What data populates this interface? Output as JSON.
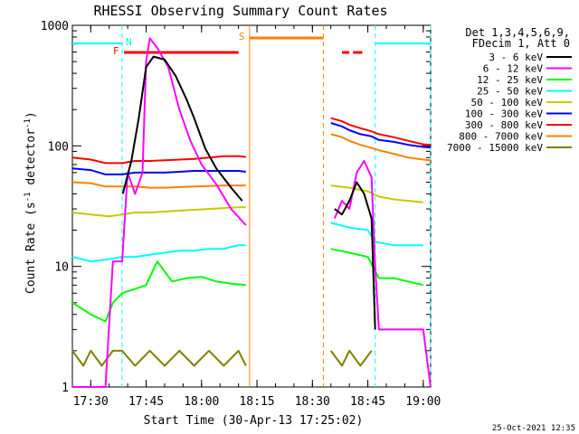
{
  "chart_data": {
    "type": "line",
    "title": "RHESSI Observing Summary Count Rates",
    "xlabel": "Start Time (30-Apr-13 17:25:02)",
    "ylabel": "Count Rate (s",
    "ylabel_sup1": "-1",
    "ylabel_mid": " detector",
    "ylabel_sup2": "-1",
    "ylabel_end": ")",
    "y_scale": "log",
    "ylim": [
      1,
      1000
    ],
    "xlim": [
      "17:25:02",
      "19:02:00"
    ],
    "x_ticks": [
      "17:30",
      "17:45",
      "18:00",
      "18:15",
      "18:30",
      "18:45",
      "19:00"
    ],
    "y_ticks": [
      "1",
      "10",
      "100",
      "1000"
    ],
    "timestamp": "25-Oct-2021 12:35",
    "legend_header": [
      "Det 1,3,4,5,6,9,",
      "FDecim 1, Att 0"
    ],
    "flags": {
      "N_label": "N",
      "F_label": "F",
      "S_label": "S",
      "N_intervals": [
        [
          "17:25:02",
          "17:38:30"
        ],
        [
          "18:47:00",
          "19:02:00"
        ]
      ],
      "N_lines": [
        "17:38:30",
        "18:47:00",
        "19:02:00"
      ],
      "F_intervals": [
        [
          "17:39:00",
          "18:10:00"
        ],
        [
          "18:38:00",
          "18:40:00"
        ],
        [
          "18:41:00",
          "18:43:30"
        ]
      ],
      "S_interval": [
        "18:13:00",
        "18:33:00"
      ],
      "N_color": "#00ffff",
      "F_color": "#ff0000",
      "S_color": "#ff8000"
    },
    "series": [
      {
        "name": "3 - 6 keV",
        "color": "#000000",
        "points": [
          [
            "17:38:40",
            40
          ],
          [
            "17:41",
            75
          ],
          [
            "17:43",
            170
          ],
          [
            "17:45",
            450
          ],
          [
            "17:47",
            550
          ],
          [
            "17:50",
            520
          ],
          [
            "17:53",
            380
          ],
          [
            "17:56",
            240
          ],
          [
            "17:58",
            170
          ],
          [
            "18:01",
            95
          ],
          [
            "18:04",
            65
          ],
          [
            "18:08",
            45
          ],
          [
            "18:11",
            35
          ],
          [
            "SEP",
            0
          ],
          [
            "18:36",
            30
          ],
          [
            "18:38",
            27
          ],
          [
            "18:40",
            35
          ],
          [
            "18:42",
            50
          ],
          [
            "18:44",
            40
          ],
          [
            "18:46",
            25
          ],
          [
            "18:47",
            3
          ]
        ]
      },
      {
        "name": "6 - 12 keV",
        "color": "#ff00ff",
        "points": [
          [
            "17:25:02",
            1
          ],
          [
            "17:29:30",
            1
          ],
          [
            "17:34",
            1
          ],
          [
            "17:36",
            11
          ],
          [
            "17:38:30",
            11
          ],
          [
            "17:40",
            60
          ],
          [
            "17:42",
            40
          ],
          [
            "17:44",
            60
          ],
          [
            "17:45",
            500
          ],
          [
            "17:46",
            780
          ],
          [
            "17:48",
            650
          ],
          [
            "17:51",
            450
          ],
          [
            "17:54",
            200
          ],
          [
            "17:57",
            110
          ],
          [
            "18:00",
            70
          ],
          [
            "18:04",
            48
          ],
          [
            "18:08",
            30
          ],
          [
            "18:12",
            22
          ],
          [
            "SEP",
            0
          ],
          [
            "18:36",
            25
          ],
          [
            "18:38",
            35
          ],
          [
            "18:40",
            30
          ],
          [
            "18:42",
            60
          ],
          [
            "18:44",
            75
          ],
          [
            "18:46",
            55
          ],
          [
            "18:47",
            10
          ],
          [
            "18:48",
            3
          ],
          [
            "18:55",
            3
          ],
          [
            "19:00",
            3
          ],
          [
            "19:02",
            1
          ]
        ]
      },
      {
        "name": "12 - 25 keV",
        "color": "#00ff00",
        "points": [
          [
            "17:25:02",
            5
          ],
          [
            "17:30",
            4
          ],
          [
            "17:34",
            3.5
          ],
          [
            "17:36",
            5
          ],
          [
            "17:38:30",
            6
          ],
          [
            "17:42",
            6.5
          ],
          [
            "17:45",
            7
          ],
          [
            "17:48",
            11
          ],
          [
            "17:52",
            7.5
          ],
          [
            "17:56",
            8
          ],
          [
            "18:00",
            8.2
          ],
          [
            "18:04",
            7.5
          ],
          [
            "18:08",
            7.2
          ],
          [
            "18:12",
            7
          ],
          [
            "SEP",
            0
          ],
          [
            "18:35",
            14
          ],
          [
            "18:40",
            13
          ],
          [
            "18:45",
            12
          ],
          [
            "18:48",
            8
          ],
          [
            "18:52",
            8
          ],
          [
            "19:00",
            7
          ]
        ]
      },
      {
        "name": "25 - 50 keV",
        "color": "#00ffff",
        "points": [
          [
            "17:25:02",
            12
          ],
          [
            "17:30",
            11
          ],
          [
            "17:35",
            11.5
          ],
          [
            "17:38:30",
            12
          ],
          [
            "17:42",
            12
          ],
          [
            "17:46",
            12.5
          ],
          [
            "17:50",
            13
          ],
          [
            "17:54",
            13.5
          ],
          [
            "17:58",
            13.5
          ],
          [
            "18:02",
            14
          ],
          [
            "18:06",
            14
          ],
          [
            "18:10",
            15
          ],
          [
            "18:12",
            15
          ],
          [
            "SEP",
            0
          ],
          [
            "18:35",
            23
          ],
          [
            "18:40",
            21
          ],
          [
            "18:45",
            20
          ],
          [
            "18:47",
            16
          ],
          [
            "18:52",
            15
          ],
          [
            "19:00",
            15
          ]
        ]
      },
      {
        "name": "50 - 100 keV",
        "color": "#c8c800",
        "points": [
          [
            "17:25:02",
            28
          ],
          [
            "17:30",
            27
          ],
          [
            "17:35",
            26
          ],
          [
            "17:38:30",
            27
          ],
          [
            "17:42",
            28
          ],
          [
            "17:46",
            28
          ],
          [
            "17:50",
            28.5
          ],
          [
            "17:54",
            29
          ],
          [
            "17:58",
            29.5
          ],
          [
            "18:02",
            30
          ],
          [
            "18:06",
            30.5
          ],
          [
            "18:10",
            31
          ],
          [
            "18:12",
            31
          ],
          [
            "SEP",
            0
          ],
          [
            "18:35",
            47
          ],
          [
            "18:40",
            45
          ],
          [
            "18:45",
            42
          ],
          [
            "18:48",
            38
          ],
          [
            "18:52",
            36
          ],
          [
            "18:56",
            35
          ],
          [
            "19:00",
            34
          ]
        ]
      },
      {
        "name": "100 - 300 keV",
        "color": "#0000ff",
        "points": [
          [
            "17:25:02",
            65
          ],
          [
            "17:30",
            63
          ],
          [
            "17:34",
            58
          ],
          [
            "17:38:30",
            58
          ],
          [
            "17:42",
            60
          ],
          [
            "17:46",
            60
          ],
          [
            "17:50",
            60
          ],
          [
            "17:54",
            61
          ],
          [
            "17:58",
            62
          ],
          [
            "18:02",
            62
          ],
          [
            "18:06",
            62
          ],
          [
            "18:10",
            62
          ],
          [
            "18:12",
            61
          ],
          [
            "SEP",
            0
          ],
          [
            "18:35",
            155
          ],
          [
            "18:38",
            145
          ],
          [
            "18:40",
            135
          ],
          [
            "18:43",
            125
          ],
          [
            "18:46",
            120
          ],
          [
            "18:48",
            112
          ],
          [
            "18:52",
            108
          ],
          [
            "18:56",
            102
          ],
          [
            "19:00",
            98
          ],
          [
            "19:02",
            97
          ]
        ]
      },
      {
        "name": "300 - 800 keV",
        "color": "#ff0000",
        "points": [
          [
            "17:25:02",
            80
          ],
          [
            "17:30",
            77
          ],
          [
            "17:34",
            72
          ],
          [
            "17:38:30",
            72
          ],
          [
            "17:42",
            75
          ],
          [
            "17:46",
            75
          ],
          [
            "17:50",
            76
          ],
          [
            "17:54",
            77
          ],
          [
            "17:58",
            78
          ],
          [
            "18:02",
            80
          ],
          [
            "18:06",
            82
          ],
          [
            "18:10",
            82
          ],
          [
            "18:12",
            81
          ],
          [
            "SEP",
            0
          ],
          [
            "18:35",
            170
          ],
          [
            "18:38",
            160
          ],
          [
            "18:40",
            150
          ],
          [
            "18:43",
            140
          ],
          [
            "18:46",
            132
          ],
          [
            "18:48",
            125
          ],
          [
            "18:52",
            118
          ],
          [
            "18:56",
            110
          ],
          [
            "19:00",
            103
          ],
          [
            "19:02",
            102
          ]
        ]
      },
      {
        "name": "800 - 7000 keV",
        "color": "#ff8000",
        "points": [
          [
            "17:25:02",
            50
          ],
          [
            "17:30",
            49
          ],
          [
            "17:34",
            46
          ],
          [
            "17:38:30",
            46
          ],
          [
            "17:42",
            46
          ],
          [
            "17:46",
            45
          ],
          [
            "17:50",
            45
          ],
          [
            "17:54",
            45.5
          ],
          [
            "17:58",
            46
          ],
          [
            "18:02",
            46.5
          ],
          [
            "18:06",
            47
          ],
          [
            "18:10",
            47
          ],
          [
            "18:12",
            47
          ],
          [
            "SEP",
            0
          ],
          [
            "18:35",
            125
          ],
          [
            "18:38",
            118
          ],
          [
            "18:40",
            110
          ],
          [
            "18:43",
            102
          ],
          [
            "18:46",
            96
          ],
          [
            "18:48",
            92
          ],
          [
            "18:52",
            86
          ],
          [
            "18:56",
            80
          ],
          [
            "19:00",
            77
          ],
          [
            "19:02",
            76
          ]
        ]
      },
      {
        "name": "7000 - 15000 keV",
        "color": "#808000",
        "points": [
          [
            "17:25:02",
            2
          ],
          [
            "17:28",
            1.5
          ],
          [
            "17:30",
            2
          ],
          [
            "17:33",
            1.5
          ],
          [
            "17:36",
            2
          ],
          [
            "17:38:30",
            2
          ],
          [
            "17:42",
            1.5
          ],
          [
            "17:46",
            2
          ],
          [
            "17:50",
            1.5
          ],
          [
            "17:54",
            2
          ],
          [
            "17:58",
            1.5
          ],
          [
            "18:02",
            2
          ],
          [
            "18:06",
            1.5
          ],
          [
            "18:10",
            2
          ],
          [
            "18:12",
            1.5
          ],
          [
            "SEP",
            0
          ],
          [
            "18:35",
            2
          ],
          [
            "18:38",
            1.5
          ],
          [
            "18:40",
            2
          ],
          [
            "18:43",
            1.5
          ],
          [
            "18:46",
            2
          ]
        ]
      }
    ]
  }
}
